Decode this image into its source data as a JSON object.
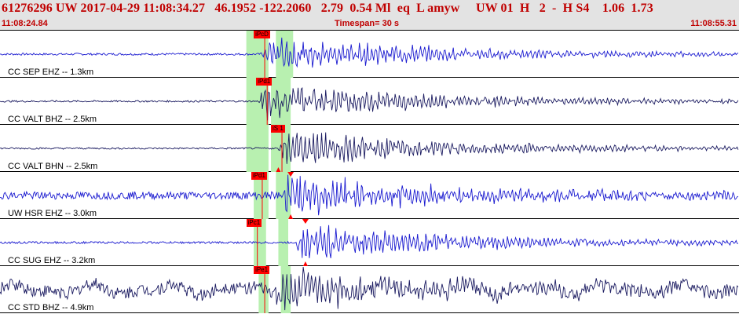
{
  "header": {
    "title": "61276296 UW 2017-04-29 11:08:34.27   46.1952 -122.2060   2.79  0.54 Ml  eq  L amyw     UW 01  H   2  -  H S4    1.06  1.73",
    "start_time": "11:08:24.84",
    "timespan": "Timespan=  30 s",
    "end_time": "11:08:55.31"
  },
  "colors": {
    "trace_blue": "#1a1ad0",
    "trace_navy": "#1a1a60",
    "pick": "#ff0000",
    "window": "#b8f0b0"
  },
  "traces": [
    {
      "label": "CC SEP EHZ -- 1.3km",
      "pick_label": "iPcD",
      "pick_t": 10.3,
      "arrival": 10.6,
      "win": [
        10.0,
        10.9,
        11.2,
        11.9
      ],
      "color": "#1a1ad0",
      "noise": 0.05,
      "amp": 0.9
    },
    {
      "label": "CC VALT BHZ -- 2.5km",
      "pick_label": "iPd1",
      "pick_t": 10.4,
      "arrival": 10.5,
      "win": [
        10.0,
        10.9,
        11.0,
        11.8
      ],
      "color": "#1a1a60",
      "noise": 0.04,
      "amp": 0.9
    },
    {
      "label": "CC VALT BHN -- 2.5km",
      "pick_label": "iS 1",
      "pick_t": 11.0,
      "arrival": 11.3,
      "win": [
        10.0,
        10.9,
        11.0,
        11.8
      ],
      "color": "#1a1a60",
      "noise": 0.04,
      "amp": 0.85,
      "marker": 11.3
    },
    {
      "label": "UW HSR EHZ -- 3.0km",
      "pick_label": "iPd1",
      "pick_t": 10.2,
      "arrival": 11.4,
      "win": [
        10.3,
        10.9,
        11.2,
        11.8
      ],
      "color": "#1a1ad0",
      "noise": 0.18,
      "amp": 0.95,
      "marker": 11.8
    },
    {
      "label": "CC SUG EHZ -- 3.2km",
      "pick_label": "iPc1",
      "pick_t": 10.0,
      "arrival": 12.0,
      "win": [
        10.3,
        10.8,
        11.3,
        11.7
      ],
      "color": "#1a1ad0",
      "noise": 0.05,
      "amp": 0.9,
      "marker": 12.4
    },
    {
      "label": "CC STD BHZ -- 4.9km",
      "pick_label": "iPe1",
      "pick_t": 10.3,
      "arrival": 11.1,
      "win": [
        10.5,
        10.9,
        11.4,
        11.8
      ],
      "color": "#1a1a60",
      "noise": 0.3,
      "amp": 0.75,
      "longwave": true
    }
  ]
}
